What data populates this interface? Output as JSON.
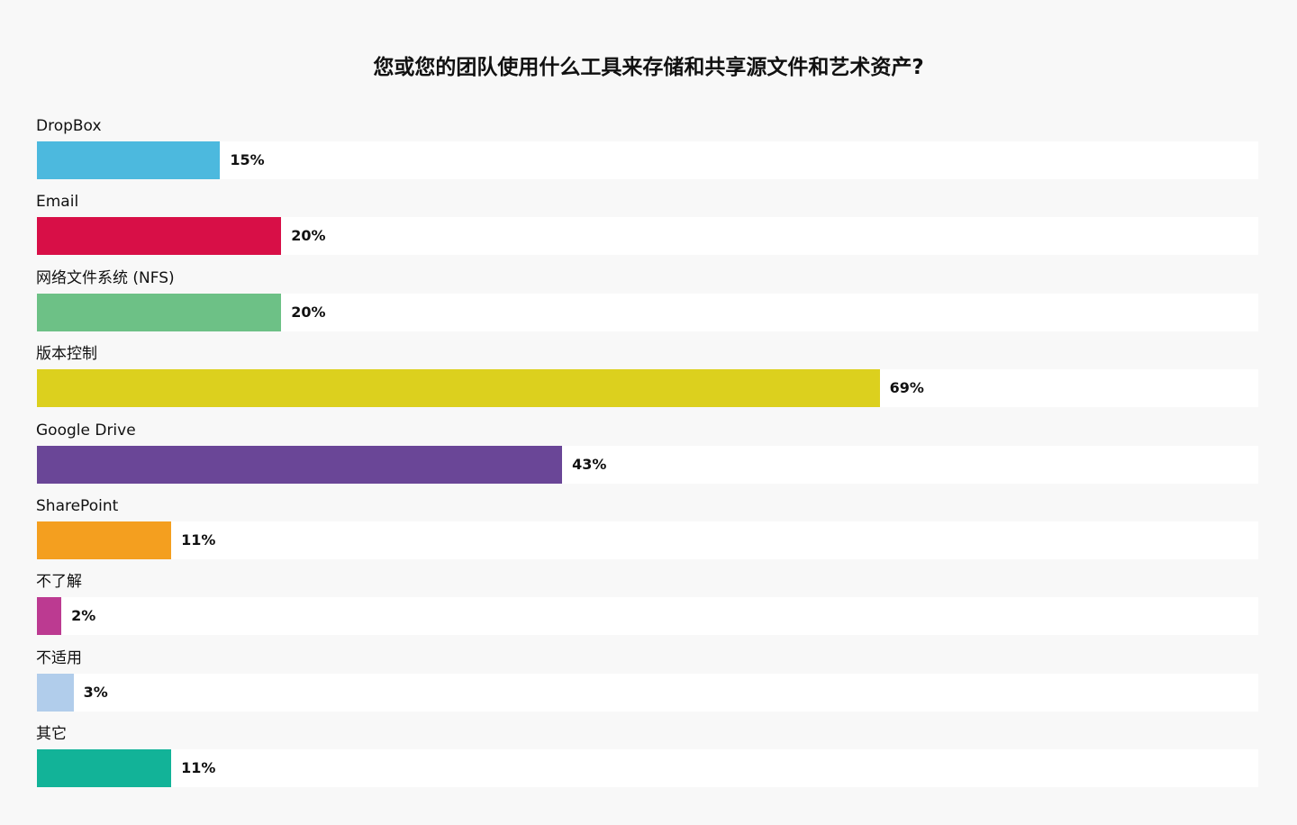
{
  "chart_data": {
    "type": "bar",
    "orientation": "horizontal",
    "title": "您或您的团队使用什么工具来存储和共享源文件和艺术资产?",
    "categories": [
      "DropBox",
      "Email",
      "网络文件系统 (NFS)",
      "版本控制",
      "Google Drive",
      "SharePoint",
      "不了解",
      "不适用",
      "其它"
    ],
    "values": [
      15,
      20,
      20,
      69,
      43,
      11,
      2,
      3,
      11
    ],
    "value_labels": [
      "15%",
      "20%",
      "20%",
      "69%",
      "43%",
      "11%",
      "2%",
      "3%",
      "11%"
    ],
    "colors": [
      "#4cb9de",
      "#d80f47",
      "#6dc186",
      "#dcd01e",
      "#6a4697",
      "#f49f1f",
      "#bc3a91",
      "#b1cdeb",
      "#12b398"
    ],
    "xlim": [
      0,
      100
    ],
    "unit": "%",
    "grid": false,
    "legend": "none"
  }
}
